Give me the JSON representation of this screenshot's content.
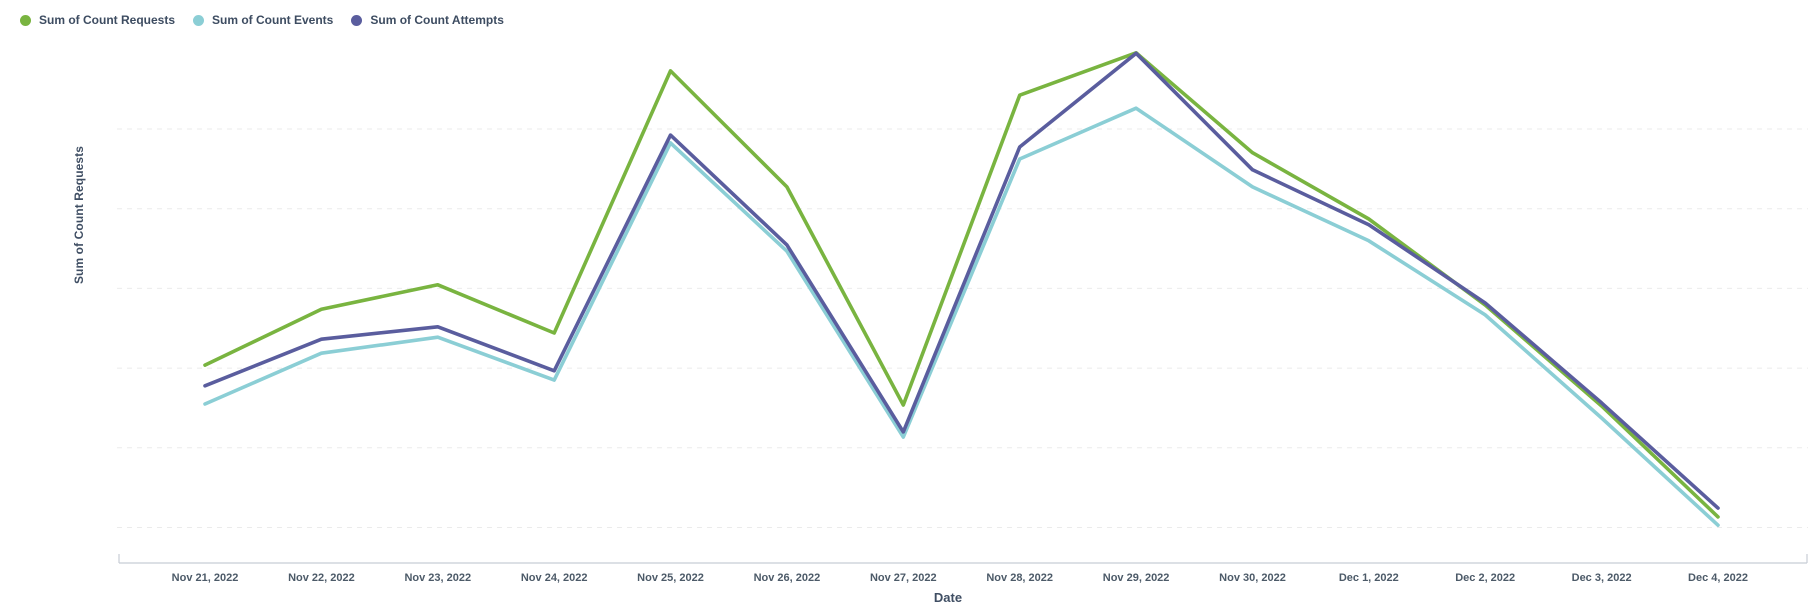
{
  "chart_data": {
    "type": "line",
    "title": "",
    "xlabel": "Date",
    "ylabel": "Sum of Count Requests",
    "categories": [
      "Nov 21, 2022",
      "Nov 22, 2022",
      "Nov 23, 2022",
      "Nov 24, 2022",
      "Nov 25, 2022",
      "Nov 26, 2022",
      "Nov 27, 2022",
      "Nov 28, 2022",
      "Nov 29, 2022",
      "Nov 30, 2022",
      "Dec 1, 2022",
      "Dec 2, 2022",
      "Dec 3, 2022",
      "Dec 4, 2022"
    ],
    "series": [
      {
        "name": "Sum of Count Requests",
        "color": "#79b440",
        "values": [
          38.2,
          49.0,
          53.7,
          44.4,
          95.0,
          72.6,
          30.5,
          90.3,
          98.5,
          79.2,
          66.4,
          49.8,
          30.3,
          8.9
        ]
      },
      {
        "name": "Sum of Count Events",
        "color": "#8bced5",
        "values": [
          30.7,
          40.5,
          43.6,
          35.3,
          81.1,
          60.2,
          24.3,
          78.0,
          87.8,
          72.6,
          62.2,
          47.9,
          28.0,
          7.3
        ]
      },
      {
        "name": "Sum of Count Attempts",
        "color": "#5a5d9e",
        "values": [
          34.2,
          43.2,
          45.6,
          37.1,
          82.6,
          61.4,
          25.3,
          80.3,
          98.4,
          75.9,
          65.3,
          50.2,
          30.9,
          10.6
        ]
      }
    ],
    "ylim": [
      0,
      105
    ],
    "y_tick_labels": [],
    "grid": true,
    "grid_style": "dashed horizontal, 6 lines",
    "legend_position": "top-left",
    "note": "y-axis displays no numeric tick labels; series values estimated in relative units 0-100"
  }
}
